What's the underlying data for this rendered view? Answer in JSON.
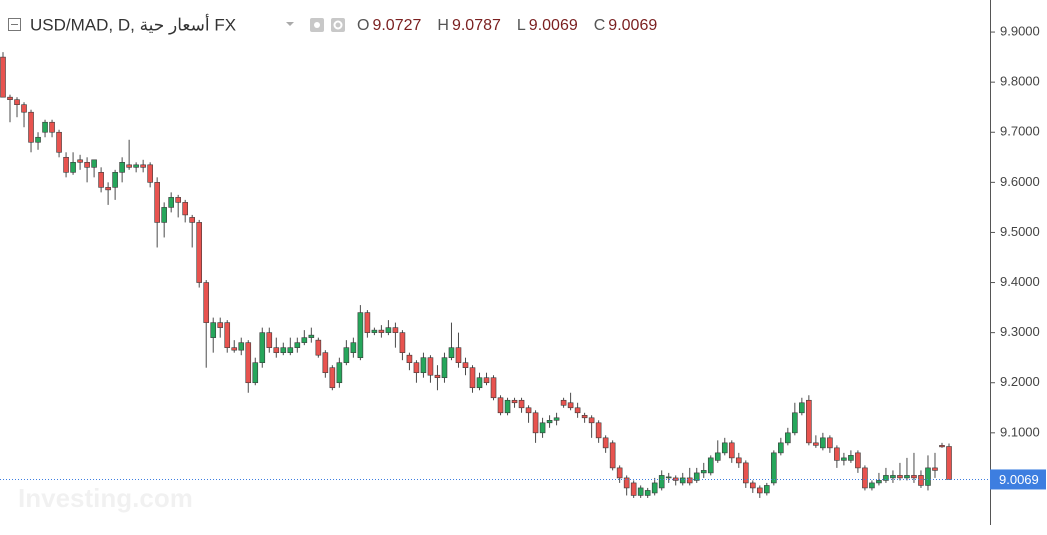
{
  "chart_data": {
    "type": "candlestick",
    "title": "USD/MAD, D, أسعار حية FX",
    "ohlc_labels": [
      "O",
      "H",
      "L",
      "C"
    ],
    "ohlc_values": [
      9.0727,
      9.0787,
      9.0069,
      9.0069
    ],
    "watermark": "Investing.com",
    "up_color": "#26a65b",
    "down_color": "#e8534f",
    "last_price": 9.0069,
    "last_price_color": "#3d7ee0",
    "ylim": [
      8.916,
      9.964
    ],
    "yticks": [
      {
        "value": 9.1,
        "label": "9.1000"
      },
      {
        "value": 9.2,
        "label": "9.2000"
      },
      {
        "value": 9.3,
        "label": "9.3000"
      },
      {
        "value": 9.4,
        "label": "9.4000"
      },
      {
        "value": 9.5,
        "label": "9.5000"
      },
      {
        "value": 9.6,
        "label": "9.6000"
      },
      {
        "value": 9.7,
        "label": "9.7000"
      },
      {
        "value": 9.8,
        "label": "9.8000"
      },
      {
        "value": 9.9,
        "label": "9.9000"
      }
    ],
    "ohlc": [
      [
        9.85,
        9.86,
        9.77,
        9.77
      ],
      [
        9.77,
        9.775,
        9.72,
        9.765
      ],
      [
        9.765,
        9.77,
        9.73,
        9.755
      ],
      [
        9.755,
        9.76,
        9.71,
        9.74
      ],
      [
        9.74,
        9.745,
        9.66,
        9.68
      ],
      [
        9.68,
        9.7,
        9.665,
        9.69
      ],
      [
        9.7,
        9.725,
        9.69,
        9.72
      ],
      [
        9.72,
        9.725,
        9.69,
        9.7
      ],
      [
        9.7,
        9.705,
        9.65,
        9.66
      ],
      [
        9.65,
        9.66,
        9.61,
        9.62
      ],
      [
        9.62,
        9.66,
        9.615,
        9.64
      ],
      [
        9.645,
        9.655,
        9.625,
        9.64
      ],
      [
        9.64,
        9.65,
        9.6,
        9.63
      ],
      [
        9.63,
        9.645,
        9.61,
        9.645
      ],
      [
        9.62,
        9.63,
        9.58,
        9.59
      ],
      [
        9.59,
        9.6,
        9.555,
        9.585
      ],
      [
        9.59,
        9.625,
        9.565,
        9.62
      ],
      [
        9.62,
        9.65,
        9.6,
        9.64
      ],
      [
        9.635,
        9.685,
        9.625,
        9.63
      ],
      [
        9.63,
        9.64,
        9.62,
        9.635
      ],
      [
        9.635,
        9.645,
        9.62,
        9.63
      ],
      [
        9.635,
        9.64,
        9.59,
        9.6
      ],
      [
        9.6,
        9.61,
        9.47,
        9.52
      ],
      [
        9.52,
        9.56,
        9.49,
        9.55
      ],
      [
        9.55,
        9.58,
        9.54,
        9.57
      ],
      [
        9.57,
        9.575,
        9.53,
        9.56
      ],
      [
        9.56,
        9.565,
        9.52,
        9.535
      ],
      [
        9.53,
        9.535,
        9.47,
        9.52
      ],
      [
        9.52,
        9.525,
        9.39,
        9.4
      ],
      [
        9.4,
        9.405,
        9.23,
        9.32
      ],
      [
        9.29,
        9.33,
        9.26,
        9.32
      ],
      [
        9.32,
        9.33,
        9.29,
        9.31
      ],
      [
        9.32,
        9.325,
        9.26,
        9.27
      ],
      [
        9.27,
        9.285,
        9.26,
        9.265
      ],
      [
        9.265,
        9.29,
        9.255,
        9.28
      ],
      [
        9.28,
        9.285,
        9.18,
        9.2
      ],
      [
        9.2,
        9.25,
        9.195,
        9.24
      ],
      [
        9.24,
        9.31,
        9.23,
        9.3
      ],
      [
        9.3,
        9.31,
        9.26,
        9.27
      ],
      [
        9.27,
        9.29,
        9.25,
        9.26
      ],
      [
        9.26,
        9.28,
        9.255,
        9.27
      ],
      [
        9.26,
        9.29,
        9.255,
        9.27
      ],
      [
        9.27,
        9.29,
        9.26,
        9.28
      ],
      [
        9.28,
        9.305,
        9.275,
        9.29
      ],
      [
        9.29,
        9.31,
        9.28,
        9.295
      ],
      [
        9.285,
        9.29,
        9.25,
        9.255
      ],
      [
        9.26,
        9.265,
        9.21,
        9.22
      ],
      [
        9.23,
        9.235,
        9.185,
        9.19
      ],
      [
        9.2,
        9.25,
        9.19,
        9.24
      ],
      [
        9.24,
        9.285,
        9.235,
        9.27
      ],
      [
        9.26,
        9.29,
        9.25,
        9.28
      ],
      [
        9.25,
        9.355,
        9.245,
        9.34
      ],
      [
        9.34,
        9.345,
        9.29,
        9.3
      ],
      [
        9.3,
        9.31,
        9.295,
        9.305
      ],
      [
        9.305,
        9.315,
        9.29,
        9.3
      ],
      [
        9.3,
        9.325,
        9.295,
        9.31
      ],
      [
        9.31,
        9.32,
        9.27,
        9.3
      ],
      [
        9.3,
        9.305,
        9.245,
        9.26
      ],
      [
        9.255,
        9.26,
        9.225,
        9.24
      ],
      [
        9.24,
        9.245,
        9.2,
        9.22
      ],
      [
        9.22,
        9.26,
        9.21,
        9.25
      ],
      [
        9.25,
        9.255,
        9.2,
        9.215
      ],
      [
        9.215,
        9.235,
        9.185,
        9.21
      ],
      [
        9.21,
        9.26,
        9.2,
        9.25
      ],
      [
        9.25,
        9.32,
        9.245,
        9.27
      ],
      [
        9.27,
        9.3,
        9.23,
        9.24
      ],
      [
        9.24,
        9.25,
        9.215,
        9.23
      ],
      [
        9.23,
        9.235,
        9.18,
        9.19
      ],
      [
        9.19,
        9.22,
        9.185,
        9.21
      ],
      [
        9.21,
        9.22,
        9.195,
        9.2
      ],
      [
        9.21,
        9.215,
        9.165,
        9.17
      ],
      [
        9.17,
        9.175,
        9.135,
        9.14
      ],
      [
        9.14,
        9.17,
        9.135,
        9.165
      ],
      [
        9.165,
        9.17,
        9.15,
        9.16
      ],
      [
        9.165,
        9.17,
        9.14,
        9.15
      ],
      [
        9.15,
        9.155,
        9.12,
        9.14
      ],
      [
        9.14,
        9.145,
        9.08,
        9.1
      ],
      [
        9.1,
        9.13,
        9.09,
        9.12
      ],
      [
        9.12,
        9.135,
        9.11,
        9.125
      ],
      [
        9.125,
        9.14,
        9.115,
        9.13
      ],
      [
        9.165,
        9.17,
        9.15,
        9.155
      ],
      [
        9.16,
        9.18,
        9.145,
        9.15
      ],
      [
        9.15,
        9.16,
        9.13,
        9.14
      ],
      [
        9.135,
        9.14,
        9.12,
        9.13
      ],
      [
        9.13,
        9.135,
        9.09,
        9.12
      ],
      [
        9.12,
        9.125,
        9.08,
        9.09
      ],
      [
        9.09,
        9.095,
        9.06,
        9.07
      ],
      [
        9.08,
        9.085,
        9.025,
        9.03
      ],
      [
        9.03,
        9.035,
        9.0,
        9.01
      ],
      [
        9.01,
        9.015,
        8.975,
        8.99
      ],
      [
        9.0,
        9.005,
        8.97,
        8.975
      ],
      [
        8.975,
        8.995,
        8.97,
        8.99
      ],
      [
        8.975,
        8.99,
        8.97,
        8.985
      ],
      [
        8.98,
        9.01,
        8.975,
        9.0
      ],
      [
        8.99,
        9.025,
        8.985,
        9.015
      ],
      [
        9.01,
        9.02,
        9.0,
        9.012
      ],
      [
        9.01,
        9.015,
        8.995,
        9.005
      ],
      [
        9.0,
        9.02,
        8.995,
        9.01
      ],
      [
        9.01,
        9.03,
        8.995,
        9.0
      ],
      [
        9.005,
        9.03,
        9.0,
        9.02
      ],
      [
        9.02,
        9.04,
        9.01,
        9.025
      ],
      [
        9.02,
        9.055,
        9.015,
        9.05
      ],
      [
        9.045,
        9.085,
        9.04,
        9.06
      ],
      [
        9.06,
        9.09,
        9.055,
        9.08
      ],
      [
        9.08,
        9.085,
        9.04,
        9.05
      ],
      [
        9.05,
        9.06,
        9.03,
        9.04
      ],
      [
        9.04,
        9.045,
        8.99,
        9.0
      ],
      [
        9.0,
        9.005,
        8.98,
        8.99
      ],
      [
        8.99,
        8.995,
        8.97,
        8.98
      ],
      [
        8.98,
        9.0,
        8.975,
        8.995
      ],
      [
        9.0,
        9.065,
        8.995,
        9.06
      ],
      [
        9.06,
        9.09,
        9.055,
        9.08
      ],
      [
        9.08,
        9.11,
        9.075,
        9.1
      ],
      [
        9.1,
        9.16,
        9.095,
        9.14
      ],
      [
        9.14,
        9.17,
        9.135,
        9.16
      ],
      [
        9.165,
        9.175,
        9.075,
        9.08
      ],
      [
        9.08,
        9.095,
        9.07,
        9.075
      ],
      [
        9.07,
        9.1,
        9.065,
        9.09
      ],
      [
        9.09,
        9.095,
        9.06,
        9.07
      ],
      [
        9.07,
        9.075,
        9.03,
        9.045
      ],
      [
        9.045,
        9.06,
        9.035,
        9.05
      ],
      [
        9.045,
        9.065,
        9.04,
        9.055
      ],
      [
        9.06,
        9.065,
        9.02,
        9.03
      ],
      [
        9.03,
        9.035,
        8.985,
        8.99
      ],
      [
        8.99,
        9.005,
        8.985,
        9.0
      ],
      [
        9.0,
        9.02,
        8.995,
        9.005
      ],
      [
        9.005,
        9.03,
        9.0,
        9.015
      ],
      [
        9.01,
        9.025,
        9.0,
        9.015
      ],
      [
        9.015,
        9.04,
        9.005,
        9.01
      ],
      [
        9.01,
        9.05,
        9.005,
        9.015
      ],
      [
        9.015,
        9.06,
        9.0,
        9.01
      ],
      [
        9.015,
        9.025,
        8.99,
        8.995
      ],
      [
        8.995,
        9.055,
        8.985,
        9.03
      ],
      [
        9.03,
        9.06,
        9.01,
        9.025
      ],
      [
        9.075,
        9.08,
        9.07,
        9.072
      ],
      [
        9.0727,
        9.0787,
        9.0069,
        9.0069
      ]
    ]
  }
}
